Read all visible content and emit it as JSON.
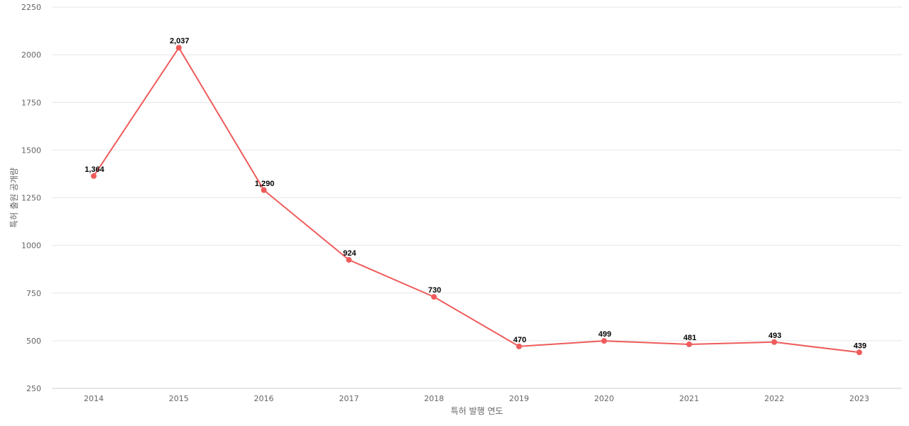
{
  "chart_data": {
    "type": "line",
    "title": "",
    "xlabel": "특허 발행 연도",
    "ylabel": "특허 출원 공개량",
    "categories": [
      "2014",
      "2015",
      "2016",
      "2017",
      "2018",
      "2019",
      "2020",
      "2021",
      "2022",
      "2023"
    ],
    "series": [
      {
        "values": [
          1364,
          2037,
          1290,
          924,
          730,
          470,
          499,
          481,
          493,
          439
        ],
        "data_labels": [
          "1,364",
          "2,037",
          "1,290",
          "924",
          "730",
          "470",
          "499",
          "481",
          "493",
          "439"
        ],
        "color": "#ef5b5b"
      }
    ],
    "y_ticks": [
      "250",
      "500",
      "750",
      "1000",
      "1250",
      "1500",
      "1750",
      "2000",
      "2250"
    ],
    "ylim": [
      250,
      2250
    ],
    "grid": true,
    "legend": "none"
  }
}
